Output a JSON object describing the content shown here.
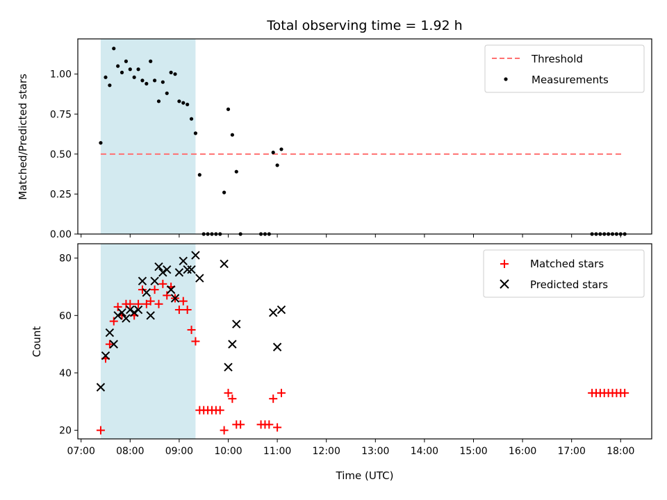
{
  "chart_data": [
    {
      "type": "scatter",
      "title": "Total observing time = 1.92 h",
      "xlabel": "",
      "ylabel": "Matched/Predicted stars",
      "xlim": [
        "06:56",
        "18:38"
      ],
      "ylim": [
        0,
        1.22
      ],
      "yticks": [
        0.0,
        0.25,
        0.5,
        0.75,
        1.0
      ],
      "ytick_labels": [
        "0.00",
        "0.25",
        "0.50",
        "0.75",
        "1.00"
      ],
      "grid": false,
      "legend_position": "upper right",
      "shaded_span": {
        "x": [
          "07:24",
          "09:20"
        ],
        "color": "#d3eaf0"
      },
      "series": [
        {
          "name": "Threshold",
          "kind": "dashed-line",
          "color": "#ff7070",
          "x": [
            "07:24",
            "18:04"
          ],
          "y": [
            0.5,
            0.5
          ]
        },
        {
          "name": "Measurements",
          "kind": "points",
          "color": "#000000",
          "points": [
            [
              "07:24",
              0.57
            ],
            [
              "07:30",
              0.98
            ],
            [
              "07:35",
              0.93
            ],
            [
              "07:40",
              1.16
            ],
            [
              "07:45",
              1.05
            ],
            [
              "07:50",
              1.01
            ],
            [
              "07:55",
              1.08
            ],
            [
              "08:00",
              1.03
            ],
            [
              "08:05",
              0.98
            ],
            [
              "08:10",
              1.03
            ],
            [
              "08:15",
              0.96
            ],
            [
              "08:20",
              0.94
            ],
            [
              "08:25",
              1.08
            ],
            [
              "08:30",
              0.96
            ],
            [
              "08:35",
              0.83
            ],
            [
              "08:40",
              0.95
            ],
            [
              "08:45",
              0.88
            ],
            [
              "08:50",
              1.01
            ],
            [
              "08:55",
              1.0
            ],
            [
              "09:00",
              0.83
            ],
            [
              "09:05",
              0.82
            ],
            [
              "09:10",
              0.81
            ],
            [
              "09:15",
              0.72
            ],
            [
              "09:20",
              0.63
            ],
            [
              "09:25",
              0.37
            ],
            [
              "09:30",
              0.0
            ],
            [
              "09:35",
              0.0
            ],
            [
              "09:40",
              0.0
            ],
            [
              "09:45",
              0.0
            ],
            [
              "09:50",
              0.0
            ],
            [
              "09:55",
              0.26
            ],
            [
              "10:00",
              0.78
            ],
            [
              "10:05",
              0.62
            ],
            [
              "10:10",
              0.39
            ],
            [
              "10:15",
              0.0
            ],
            [
              "10:40",
              0.0
            ],
            [
              "10:45",
              0.0
            ],
            [
              "10:50",
              0.0
            ],
            [
              "10:55",
              0.51
            ],
            [
              "11:00",
              0.43
            ],
            [
              "11:05",
              0.53
            ],
            [
              "17:25",
              0.0
            ],
            [
              "17:30",
              0.0
            ],
            [
              "17:35",
              0.0
            ],
            [
              "17:40",
              0.0
            ],
            [
              "17:45",
              0.0
            ],
            [
              "17:50",
              0.0
            ],
            [
              "17:55",
              0.0
            ],
            [
              "18:00",
              0.0
            ],
            [
              "18:05",
              0.0
            ]
          ]
        }
      ]
    },
    {
      "type": "scatter",
      "title": "",
      "xlabel": "Time (UTC)",
      "ylabel": "Count",
      "xlim": [
        "06:56",
        "18:38"
      ],
      "ylim": [
        17,
        85
      ],
      "xticks": [
        "07:00",
        "08:00",
        "09:00",
        "10:00",
        "11:00",
        "12:00",
        "13:00",
        "14:00",
        "15:00",
        "16:00",
        "17:00",
        "18:00"
      ],
      "yticks": [
        20,
        40,
        60,
        80
      ],
      "grid": false,
      "legend_position": "upper right",
      "shaded_span": {
        "x": [
          "07:24",
          "09:20"
        ],
        "color": "#d3eaf0"
      },
      "series": [
        {
          "name": "Matched stars",
          "marker": "plus",
          "color": "#ff0000",
          "points": [
            [
              "07:24",
              20
            ],
            [
              "07:30",
              45
            ],
            [
              "07:35",
              50
            ],
            [
              "07:40",
              58
            ],
            [
              "07:45",
              63
            ],
            [
              "07:50",
              60
            ],
            [
              "07:55",
              64
            ],
            [
              "08:00",
              64
            ],
            [
              "08:05",
              60
            ],
            [
              "08:10",
              64
            ],
            [
              "08:15",
              69
            ],
            [
              "08:20",
              64
            ],
            [
              "08:25",
              65
            ],
            [
              "08:30",
              69
            ],
            [
              "08:35",
              64
            ],
            [
              "08:40",
              71
            ],
            [
              "08:45",
              67
            ],
            [
              "08:50",
              70
            ],
            [
              "08:55",
              66
            ],
            [
              "09:00",
              62
            ],
            [
              "09:05",
              65
            ],
            [
              "09:10",
              62
            ],
            [
              "09:15",
              55
            ],
            [
              "09:20",
              51
            ],
            [
              "09:25",
              27
            ],
            [
              "09:30",
              27
            ],
            [
              "09:35",
              27
            ],
            [
              "09:40",
              27
            ],
            [
              "09:45",
              27
            ],
            [
              "09:50",
              27
            ],
            [
              "09:55",
              20
            ],
            [
              "10:00",
              33
            ],
            [
              "10:05",
              31
            ],
            [
              "10:10",
              22
            ],
            [
              "10:15",
              22
            ],
            [
              "10:40",
              22
            ],
            [
              "10:45",
              22
            ],
            [
              "10:50",
              22
            ],
            [
              "10:55",
              31
            ],
            [
              "11:00",
              21
            ],
            [
              "11:05",
              33
            ],
            [
              "17:25",
              33
            ],
            [
              "17:30",
              33
            ],
            [
              "17:35",
              33
            ],
            [
              "17:40",
              33
            ],
            [
              "17:45",
              33
            ],
            [
              "17:50",
              33
            ],
            [
              "17:55",
              33
            ],
            [
              "18:00",
              33
            ],
            [
              "18:05",
              33
            ]
          ]
        },
        {
          "name": "Predicted stars",
          "marker": "x",
          "color": "#000000",
          "points": [
            [
              "07:24",
              35
            ],
            [
              "07:30",
              46
            ],
            [
              "07:35",
              54
            ],
            [
              "07:40",
              50
            ],
            [
              "07:45",
              60
            ],
            [
              "07:50",
              61
            ],
            [
              "07:55",
              59
            ],
            [
              "08:00",
              62
            ],
            [
              "08:05",
              61
            ],
            [
              "08:10",
              62
            ],
            [
              "08:15",
              72
            ],
            [
              "08:20",
              68
            ],
            [
              "08:25",
              60
            ],
            [
              "08:30",
              72
            ],
            [
              "08:35",
              77
            ],
            [
              "08:40",
              75
            ],
            [
              "08:45",
              76
            ],
            [
              "08:50",
              69
            ],
            [
              "08:55",
              66
            ],
            [
              "09:00",
              75
            ],
            [
              "09:05",
              79
            ],
            [
              "09:10",
              76
            ],
            [
              "09:15",
              76
            ],
            [
              "09:20",
              81
            ],
            [
              "09:25",
              73
            ],
            [
              "09:55",
              78
            ],
            [
              "10:00",
              42
            ],
            [
              "10:05",
              50
            ],
            [
              "10:10",
              57
            ],
            [
              "10:55",
              61
            ],
            [
              "11:00",
              49
            ],
            [
              "11:05",
              62
            ]
          ]
        }
      ]
    }
  ]
}
